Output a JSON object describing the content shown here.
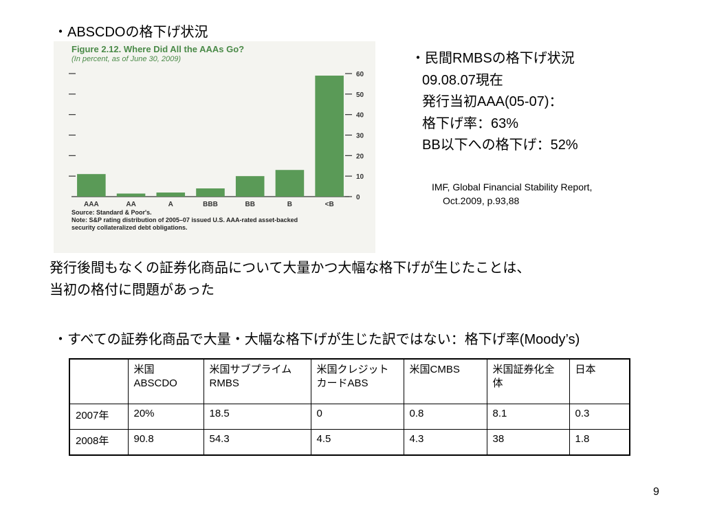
{
  "slide": {
    "heading_abscdo": "・ABSCDOの格下げ状況",
    "rmbs": {
      "title": "・民間RMBSの格下げ状況",
      "lines": [
        "09.08.07現在",
        "発行当初AAA(05-07)：",
        "格下げ率：63%",
        "BB以下への格下げ：52%"
      ]
    },
    "source_citation": [
      "IMF, Global Financial Stability Report,",
      "Oct.2009, p.93,88"
    ],
    "conclusion": [
      "発行後間もなくの証券化商品について大量かつ大幅な格下げが生じたことは、",
      "当初の格付に問題があった"
    ],
    "table_heading": "・すべての証券化商品で大量・大幅な格下げが生じた訳ではない：格下げ率(Moody’s)",
    "page_number": "9"
  },
  "chart_data": {
    "type": "bar",
    "title": "Figure 2.12. Where Did All the AAAs Go?",
    "subtitle": "(In percent, as of June 30, 2009)",
    "categories": [
      "AAA",
      "AA",
      "A",
      "BBB",
      "BB",
      "B",
      "<B"
    ],
    "values": [
      11,
      1.5,
      2,
      4,
      10,
      13,
      59
    ],
    "ylim": [
      0,
      60
    ],
    "yticks": [
      "60",
      "50",
      "40",
      "30",
      "20",
      "10",
      "0"
    ],
    "axis_side": "right",
    "bar_color": "#5a9a57",
    "source_note": [
      "Source: Standard & Poor's.",
      "Note: S&P rating distribution of 2005–07 issued U.S. AAA-rated asset-backed",
      "security collateralized debt obligations."
    ]
  },
  "table": {
    "columns": [
      "",
      "米国ABSCDO",
      "米国サブプライムRMBS",
      "米国クレジットカードABS",
      "米国CMBS",
      "米国証券化全体",
      "日本"
    ],
    "rows": [
      [
        "2007年",
        "20%",
        "18.5",
        "0",
        "0.8",
        "8.1",
        "0.3"
      ],
      [
        "2008年",
        "90.8",
        "54.3",
        "4.5",
        "4.3",
        "38",
        "1.8"
      ]
    ]
  }
}
